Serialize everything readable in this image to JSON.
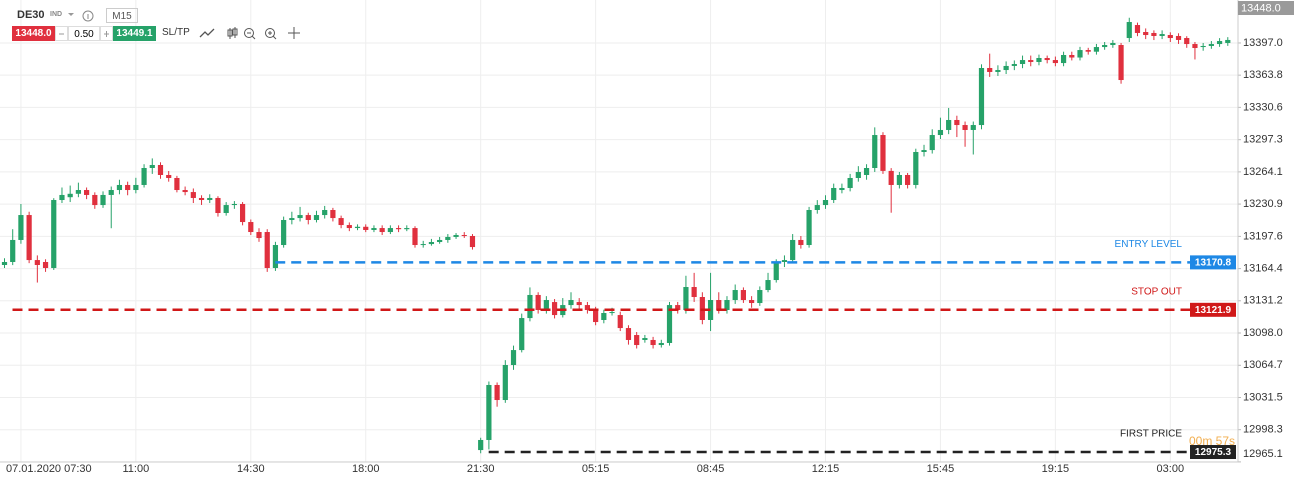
{
  "toolbar": {
    "symbol": "DE30",
    "market": "IND",
    "timeframe": "M15",
    "bid": "13448.0",
    "spread": "0.50",
    "ask": "13449.1",
    "sltp": "SL/TP"
  },
  "chart_data": {
    "type": "candlestick",
    "up_color": "#26a269",
    "down_color": "#e0303e",
    "categories": [
      null,
      null,
      "07.01.2020 07:30",
      null,
      null,
      null,
      null,
      null,
      null,
      null,
      null,
      null,
      null,
      null,
      null,
      null,
      "11:00",
      null,
      null,
      null,
      null,
      null,
      null,
      null,
      null,
      null,
      null,
      null,
      null,
      null,
      "14:30",
      null,
      null,
      null,
      null,
      null,
      null,
      null,
      null,
      null,
      null,
      null,
      null,
      null,
      "18:00",
      null,
      null,
      null,
      null,
      null,
      null,
      null,
      null,
      null,
      null,
      null,
      null,
      null,
      "21:30",
      null,
      null,
      null,
      null,
      null,
      null,
      null,
      null,
      null,
      null,
      null,
      null,
      null,
      "05:15",
      null,
      null,
      null,
      null,
      null,
      null,
      null,
      null,
      null,
      null,
      null,
      null,
      null,
      "08:45",
      null,
      null,
      null,
      null,
      null,
      null,
      null,
      null,
      null,
      null,
      null,
      null,
      null,
      "12:15",
      null,
      null,
      null,
      null,
      null,
      null,
      null,
      null,
      null,
      null,
      null,
      null,
      null,
      "15:45",
      null,
      null,
      null,
      null,
      null,
      null,
      null,
      null,
      null,
      null,
      null,
      null,
      null,
      "19:15",
      null,
      null,
      null,
      null,
      null,
      null,
      null,
      null,
      null,
      null,
      null,
      null,
      null,
      "03:00",
      null,
      null,
      null,
      null,
      null,
      null,
      null
    ],
    "open": [
      13168.1,
      13171.2,
      13193.9,
      13219.6,
      13173.2,
      13171.2,
      13165.0,
      13235.1,
      13238.0,
      13241.5,
      13245.4,
      13240.3,
      13229.9,
      13240.3,
      13245.4,
      13250.6,
      13245.4,
      13250.6,
      13268.1,
      13271.2,
      13260.9,
      13257.8,
      13245.4,
      13243.3,
      13237.2,
      13235.1,
      13237.2,
      13221.7,
      13229.9,
      13231.0,
      13212.4,
      13202.1,
      13202.1,
      13165.0,
      13188.7,
      13214.5,
      13216.5,
      13219.6,
      13214.5,
      13219.6,
      13224.8,
      13216.5,
      13209.3,
      13206.2,
      13207.5,
      13204.2,
      13206.2,
      13202.1,
      13206.2,
      13205.0,
      13206.2,
      13188.7,
      13189.7,
      13191.8,
      13193.9,
      13197.0,
      13199.0,
      13198.0,
      12977.3,
      12987.7,
      13044.4,
      13028.9,
      13065.0,
      13080.4,
      13113.4,
      13137.2,
      13121.7,
      13129.9,
      13116.5,
      13126.8,
      13129.9,
      13126.8,
      13121.7,
      13111.4,
      13118.6,
      13116.5,
      13103.1,
      13095.9,
      13090.8,
      13090.8,
      13085.6,
      13087.7,
      13126.8,
      13121.7,
      13145.4,
      13135.1,
      13111.4,
      13132.0,
      13121.7,
      13132.0,
      13142.3,
      13132.0,
      13128.9,
      13142.3,
      13152.6,
      13171.2,
      13173.2,
      13193.9,
      13188.7,
      13224.8,
      13229.9,
      13235.1,
      13245.4,
      13247.5,
      13257.8,
      13260.9,
      13268.1,
      13302.1,
      13265.1,
      13250.6,
      13260.9,
      13250.6,
      13284.6,
      13286.6,
      13302.1,
      13307.3,
      13317.6,
      13312.4,
      13307.3,
      13312.4,
      13371.2,
      13367.1,
      13369.1,
      13373.3,
      13375.3,
      13379.4,
      13377.4,
      13381.5,
      13379.4,
      13376.3,
      13384.6,
      13382.0,
      13389.7,
      13388.0,
      13392.8,
      13394.9,
      13394.9,
      13402.1,
      13415.5,
      13408.3,
      13407.3,
      13404.2,
      13405.2,
      13404.2,
      13402.1,
      13395.9,
      13392.8,
      13393.9,
      13395.9,
      13397.0
    ],
    "high": [
      13175,
      13205,
      13231,
      13223,
      13178,
      13174,
      13237,
      13248,
      13250,
      13253,
      13248,
      13243,
      13244,
      13249,
      13256,
      13254,
      13258,
      13272,
      13278,
      13274,
      13265,
      13260,
      13249,
      13247,
      13240,
      13241,
      13239,
      13233,
      13234,
      13233,
      13215,
      13206,
      13205,
      13192,
      13218,
      13223,
      13228,
      13222,
      13224,
      13229,
      13227,
      13219,
      13212,
      13210,
      13210,
      13209,
      13209,
      13209,
      13209,
      13209,
      13208,
      13193,
      13195,
      13197,
      13200,
      13201,
      13202,
      13200,
      12990,
      13048,
      13047,
      13070,
      13085,
      13118,
      13145,
      13140,
      13136,
      13133,
      13134,
      13140,
      13134,
      13130,
      13125,
      13122,
      13124,
      13120,
      13106,
      13099,
      13096,
      13094,
      13091,
      13130,
      13130,
      13157,
      13160,
      13140,
      13160,
      13140,
      13136,
      13148,
      13145,
      13136,
      13146,
      13160,
      13174,
      13178,
      13200,
      13198,
      13228,
      13235,
      13240,
      13252,
      13252,
      13262,
      13270,
      13272,
      13310,
      13305,
      13268,
      13264,
      13263,
      13288,
      13292,
      13308,
      13320,
      13330,
      13322,
      13316,
      13316,
      13375,
      13386,
      13374,
      13378,
      13379,
      13384,
      13384,
      13385,
      13384,
      13383,
      13388,
      13388,
      13393,
      13392,
      13396,
      13398,
      13400,
      13397,
      13423,
      13418,
      13412,
      13410,
      13410,
      13408,
      13407,
      13404,
      13398,
      13397,
      13399,
      13402,
      13403
    ],
    "low": [
      13165,
      13168,
      13190,
      13170,
      13150,
      13161,
      13163,
      13232,
      13233,
      13238,
      13236,
      13226,
      13227,
      13206,
      13241,
      13240,
      13242,
      13248,
      13262,
      13257,
      13254,
      13243,
      13240,
      13232,
      13230,
      13232,
      13218,
      13219,
      13226,
      13209,
      13199,
      13192,
      13161,
      13162,
      13186,
      13210,
      13213,
      13210,
      13212,
      13216,
      13213,
      13206,
      13203,
      13204,
      13202,
      13202,
      13199,
      13200,
      13202,
      13203,
      13186,
      13186,
      13188,
      13190,
      13191,
      13195,
      13196,
      13184,
      12974,
      12978,
      13022,
      13026,
      13060,
      13078,
      13110,
      13118,
      13118,
      13113,
      13114,
      13123,
      13122,
      13118,
      13106,
      13108,
      13116,
      13100,
      13086,
      13082,
      13088,
      13082,
      13083,
      13085,
      13118,
      13118,
      13130,
      13107,
      13100,
      13118,
      13118,
      13128,
      13129,
      13124,
      13126,
      13140,
      13150,
      13166,
      13170,
      13185,
      13186,
      13221,
      13226,
      13232,
      13242,
      13244,
      13254,
      13256,
      13264,
      13262,
      13222,
      13247,
      13247,
      13247,
      13280,
      13283,
      13298,
      13303,
      13300,
      13290,
      13282,
      13308,
      13362,
      13363,
      13365,
      13369,
      13371,
      13373,
      13374,
      13376,
      13373,
      13373,
      13379,
      13379,
      13385,
      13385,
      13390,
      13392,
      13355,
      13398,
      13404,
      13401,
      13400,
      13401,
      13398,
      13396,
      13392,
      13380,
      13389,
      13391,
      13393,
      13394
    ],
    "close": [
      13171.2,
      13193.9,
      13219.6,
      13173.2,
      13168.1,
      13165.0,
      13235.1,
      13240.3,
      13241.5,
      13245.4,
      13240.3,
      13229.9,
      13240.3,
      13245.4,
      13250.6,
      13245.4,
      13250.6,
      13268.1,
      13271.2,
      13260.9,
      13257.8,
      13245.4,
      13243.3,
      13237.2,
      13235.1,
      13237.2,
      13221.7,
      13229.9,
      13231.0,
      13212.4,
      13202.1,
      13195.9,
      13165.0,
      13188.7,
      13214.5,
      13216.5,
      13219.6,
      13214.5,
      13219.6,
      13224.8,
      13216.5,
      13209.3,
      13206.2,
      13207.5,
      13204.2,
      13206.2,
      13202.1,
      13206.2,
      13205.0,
      13206.2,
      13188.7,
      13189.7,
      13191.8,
      13193.9,
      13197.0,
      13199.0,
      13198.0,
      13186.6,
      12987.7,
      13044.4,
      13028.9,
      13065.0,
      13080.4,
      13113.4,
      13137.2,
      13121.7,
      13132.0,
      13116.5,
      13126.8,
      13132.0,
      13126.8,
      13121.7,
      13109.3,
      13118.6,
      13119.6,
      13103.1,
      13090.8,
      13085.6,
      13092.8,
      13085.6,
      13087.7,
      13126.8,
      13121.7,
      13145.4,
      13135.1,
      13111.4,
      13132.0,
      13121.7,
      13132.0,
      13142.3,
      13132.0,
      13128.9,
      13142.3,
      13152.6,
      13171.2,
      13173.2,
      13193.9,
      13188.7,
      13224.8,
      13229.9,
      13235.1,
      13247.5,
      13247.5,
      13257.8,
      13264.0,
      13268.1,
      13302.1,
      13265.1,
      13250.6,
      13260.9,
      13250.6,
      13284.6,
      13286.6,
      13302.1,
      13307.3,
      13317.6,
      13312.4,
      13307.3,
      13312.4,
      13371.2,
      13367.1,
      13369.1,
      13373.3,
      13375.3,
      13379.4,
      13377.4,
      13381.5,
      13379.4,
      13376.3,
      13384.6,
      13382.0,
      13389.7,
      13388.0,
      13392.8,
      13394.9,
      13397.0,
      13358.8,
      13418.6,
      13407.3,
      13405.2,
      13404.2,
      13406.2,
      13402.1,
      13400.1,
      13395.9,
      13391.8,
      13393.9,
      13395.9,
      13399.0,
      13400.1
    ],
    "ylim": [
      12965.0,
      13441.3
    ],
    "yticks": [
      {
        "value": 13397,
        "label": "13397.0"
      },
      13363.8,
      13330.6,
      13297.3,
      13264.1,
      13230.9,
      13197.6,
      13164.4,
      13131.2,
      {
        "value": 13098,
        "label": "13098.0"
      },
      13064.7,
      13031.5,
      12998.3,
      12965.1
    ],
    "grid": true,
    "current_price": {
      "value": 13448,
      "label": "13448.0"
    },
    "countdown": "00m 57s",
    "levels": [
      {
        "name": "ENTRY LEVEL",
        "value": 13170.8,
        "color": "#1e88e5"
      },
      {
        "name": "STOP OUT",
        "value": 13121.9,
        "color": "#d01818"
      },
      {
        "name": "FIRST PRICE",
        "value": 12975.3,
        "color": "#222222"
      }
    ]
  }
}
